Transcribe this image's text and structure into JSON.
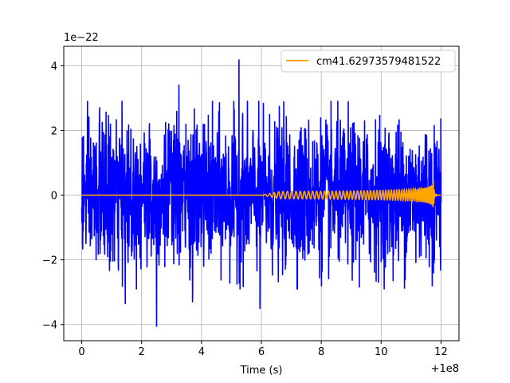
{
  "chart_data": {
    "type": "line",
    "title": "",
    "xlabel": "Time (s)",
    "ylabel": "",
    "x_offset_label": "+1e8",
    "y_scale_label": "1e−22",
    "xlim": [
      -0.6,
      12.6
    ],
    "ylim": [
      -4.5,
      4.6
    ],
    "x_ticks": [
      0,
      2,
      4,
      6,
      8,
      10,
      12
    ],
    "x_tick_labels": [
      "0",
      "2",
      "4",
      "6",
      "8",
      "10",
      "12"
    ],
    "y_ticks": [
      -4,
      -2,
      0,
      2,
      4
    ],
    "y_tick_labels": [
      "−4",
      "−2",
      "0",
      "2",
      "4"
    ],
    "grid": true,
    "legend_position": "top-right",
    "series": [
      {
        "name": "",
        "color": "#0000ff",
        "description_of_values": "noise strain, roughly ±2, excursions to about 4.2 and −4.1",
        "x_range": [
          0,
          12
        ],
        "typical_amplitude": 2.0,
        "peaks": [
          {
            "x": 5.25,
            "y": 4.18
          },
          {
            "x": 3.25,
            "y": 3.4
          },
          {
            "x": 0.6,
            "y": 2.7
          },
          {
            "x": 2.5,
            "y": -4.05
          },
          {
            "x": 1.45,
            "y": -3.35
          },
          {
            "x": 5.95,
            "y": -3.5
          },
          {
            "x": 3.7,
            "y": -3.3
          }
        ]
      },
      {
        "name": "cm41.62973579481522",
        "color": "#ffa500",
        "chirp_start": 6.0,
        "merger_time": 11.75,
        "peak_amplitude": 0.45,
        "x_range": [
          0,
          12
        ]
      }
    ]
  }
}
